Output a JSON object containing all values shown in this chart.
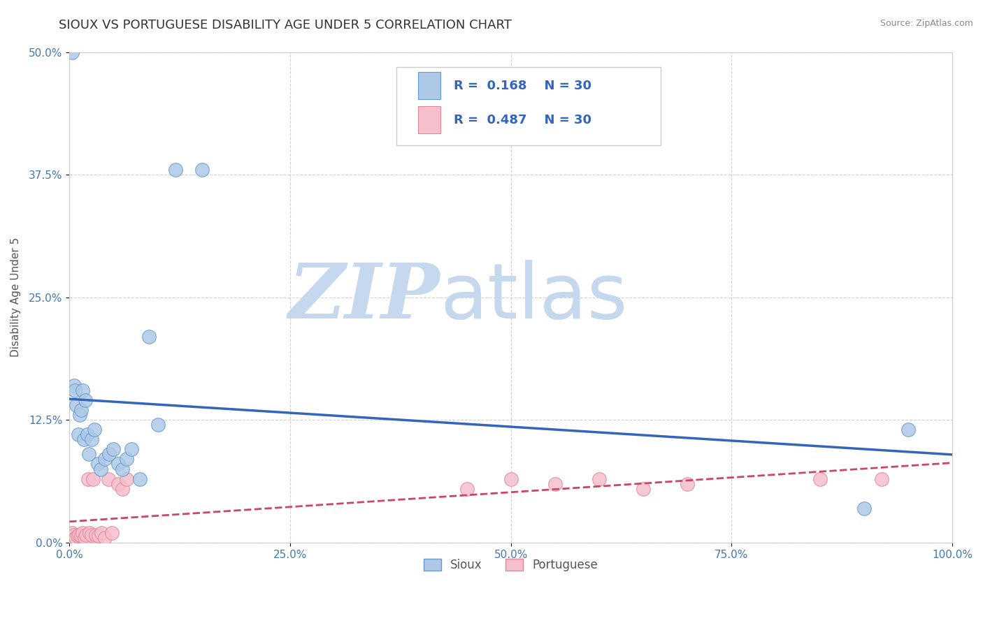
{
  "title": "SIOUX VS PORTUGUESE DISABILITY AGE UNDER 5 CORRELATION CHART",
  "source": "Source: ZipAtlas.com",
  "ylabel": "Disability Age Under 5",
  "xlim": [
    0,
    1.0
  ],
  "ylim": [
    0,
    0.5
  ],
  "xticks": [
    0.0,
    0.25,
    0.5,
    0.75,
    1.0
  ],
  "xtick_labels": [
    "0.0%",
    "25.0%",
    "50.0%",
    "75.0%",
    "100.0%"
  ],
  "yticks": [
    0.0,
    0.125,
    0.25,
    0.375,
    0.5
  ],
  "ytick_labels": [
    "0.0%",
    "12.5%",
    "25.0%",
    "37.5%",
    "50.0%"
  ],
  "sioux_color": "#aec9e8",
  "portuguese_color": "#f5bfcc",
  "sioux_edge": "#6699cc",
  "portuguese_edge": "#e08898",
  "trend_sioux_color": "#3366bb",
  "trend_portuguese_color": "#cc4466",
  "R_sioux": 0.168,
  "R_portuguese": 0.487,
  "N_sioux": 30,
  "N_portuguese": 30,
  "sioux_x": [
    0.003,
    0.005,
    0.006,
    0.008,
    0.01,
    0.012,
    0.013,
    0.015,
    0.016,
    0.018,
    0.02,
    0.022,
    0.025,
    0.028,
    0.032,
    0.035,
    0.04,
    0.045,
    0.05,
    0.055,
    0.06,
    0.065,
    0.07,
    0.08,
    0.09,
    0.1,
    0.12,
    0.15,
    0.9,
    0.95
  ],
  "sioux_y": [
    0.5,
    0.16,
    0.155,
    0.14,
    0.11,
    0.13,
    0.135,
    0.155,
    0.105,
    0.145,
    0.11,
    0.09,
    0.105,
    0.115,
    0.08,
    0.075,
    0.085,
    0.09,
    0.095,
    0.08,
    0.075,
    0.085,
    0.095,
    0.065,
    0.21,
    0.12,
    0.38,
    0.38,
    0.035,
    0.115
  ],
  "portuguese_x": [
    0.003,
    0.005,
    0.007,
    0.009,
    0.011,
    0.013,
    0.015,
    0.017,
    0.019,
    0.021,
    0.023,
    0.025,
    0.027,
    0.03,
    0.033,
    0.036,
    0.04,
    0.044,
    0.048,
    0.055,
    0.06,
    0.065,
    0.45,
    0.5,
    0.55,
    0.6,
    0.65,
    0.7,
    0.85,
    0.92
  ],
  "portuguese_y": [
    0.01,
    0.008,
    0.005,
    0.007,
    0.008,
    0.007,
    0.01,
    0.005,
    0.008,
    0.065,
    0.01,
    0.008,
    0.065,
    0.008,
    0.007,
    0.01,
    0.005,
    0.065,
    0.01,
    0.06,
    0.055,
    0.065,
    0.055,
    0.065,
    0.06,
    0.065,
    0.055,
    0.06,
    0.065,
    0.065
  ],
  "watermark_zip": "ZIP",
  "watermark_atlas": "atlas",
  "watermark_color_zip": "#c5d8ee",
  "watermark_color_atlas": "#c5d8ee",
  "background_color": "#ffffff",
  "legend_label_sioux": "Sioux",
  "legend_label_portuguese": "Portuguese",
  "title_fontsize": 13,
  "axis_label_fontsize": 11,
  "tick_fontsize": 11,
  "legend_text_color": "#3366bb",
  "legend_r_color": "#3366bb",
  "legend_n_color": "#3366bb"
}
